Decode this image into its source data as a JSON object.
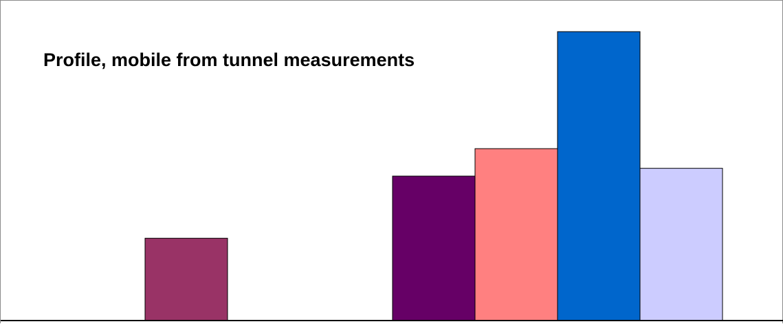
{
  "chart_data": {
    "type": "bar",
    "title": "Profile, mobile from tunnel measurements",
    "xlabel": "",
    "ylabel": "",
    "ylim": [
      0,
      100
    ],
    "grid": false,
    "categories": [
      "",
      "",
      "",
      "",
      "",
      "",
      "",
      ""
    ],
    "values": [
      null,
      28.5,
      null,
      null,
      50.0,
      59.5,
      100,
      52.7
    ],
    "colors": [
      "#993366",
      "#993366",
      "#993366",
      "#993366",
      "#660066",
      "#ff8080",
      "#0066cc",
      "#ccccff"
    ]
  }
}
